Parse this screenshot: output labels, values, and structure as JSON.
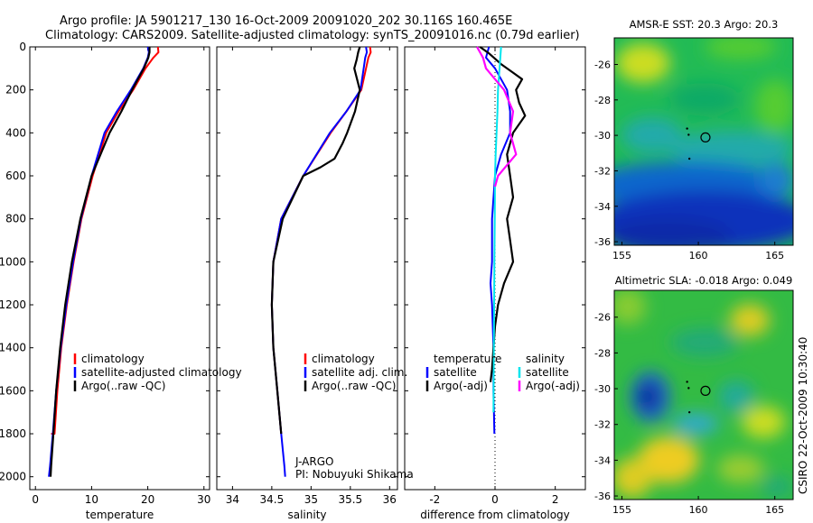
{
  "header": {
    "line1": "Argo profile: JA 5901217_130 16-Oct-2009 20091020_202 30.116S 160.465E",
    "line2": "Climatology: CARS2009. Satellite-adjusted climatology: synTS_20091016.nc (0.79d earlier)"
  },
  "colors": {
    "climatology": "#ff0000",
    "satellite": "#0000ff",
    "argo": "#000000",
    "sat_salinity": "#00e5ee",
    "argo_salinity": "#ff00ff"
  },
  "chart_data": [
    {
      "type": "line",
      "name": "temperature-profile",
      "xlabel": "temperature",
      "ylabel": "",
      "xlim": [
        -1,
        31
      ],
      "ylim": [
        2060,
        0
      ],
      "y_inverted": true,
      "xticks": [
        "0",
        "10",
        "20",
        "30"
      ],
      "yticks": [
        "0",
        "200",
        "400",
        "600",
        "800",
        "1000",
        "1200",
        "1400",
        "1600",
        "1800",
        "2000"
      ],
      "legend": [
        "climatology",
        "satellite-adjusted climatology",
        "Argo(..raw -QC)"
      ],
      "series": [
        {
          "name": "climatology",
          "color": "#ff0000",
          "x": [
            21.8,
            21.9,
            21.0,
            19.6,
            17.4,
            14.8,
            12.6,
            10.2,
            8.2,
            6.8,
            5.6,
            4.6,
            3.9,
            3.4,
            3.0,
            2.8
          ],
          "y": [
            0,
            25,
            50,
            100,
            200,
            300,
            400,
            600,
            800,
            1000,
            1200,
            1400,
            1600,
            1800,
            1800,
            1800
          ]
        },
        {
          "name": "satellite-adjusted climatology",
          "color": "#0000ff",
          "x": [
            20.0,
            20.2,
            20.0,
            19.2,
            17.0,
            14.5,
            12.3,
            10.0,
            8.1,
            6.7,
            5.5,
            4.5,
            3.7,
            3.1,
            2.6,
            2.4
          ],
          "y": [
            0,
            25,
            50,
            100,
            200,
            300,
            400,
            600,
            800,
            1000,
            1200,
            1400,
            1600,
            1800,
            1950,
            2000
          ]
        },
        {
          "name": "Argo(..raw -QC)",
          "color": "#000000",
          "x": [
            20.3,
            20.3,
            20.1,
            19.3,
            17.2,
            15.3,
            13.2,
            10.0,
            8.0,
            6.5,
            5.3,
            4.4,
            3.7,
            3.2,
            2.8,
            2.7
          ],
          "y": [
            0,
            25,
            50,
            100,
            200,
            300,
            400,
            600,
            800,
            1000,
            1200,
            1400,
            1600,
            1800,
            1950,
            2000
          ]
        }
      ]
    },
    {
      "type": "line",
      "name": "salinity-profile",
      "xlabel": "salinity",
      "xlim": [
        33.8,
        36.1
      ],
      "ylim": [
        2060,
        0
      ],
      "y_inverted": true,
      "xticks": [
        "34",
        "34.5",
        "35",
        "35.5",
        "36"
      ],
      "legend": [
        "climatology",
        "satellite adj. clim.",
        "Argo(..raw -QC)"
      ],
      "annotation": [
        "J-ARGO",
        "PI: Nobuyuki Shikama"
      ],
      "series": [
        {
          "name": "climatology",
          "color": "#ff0000",
          "x": [
            35.75,
            35.76,
            35.73,
            35.7,
            35.64,
            35.45,
            35.25,
            34.9,
            34.62,
            34.52,
            34.5,
            34.52,
            34.57,
            34.62
          ],
          "y": [
            0,
            25,
            50,
            100,
            200,
            300,
            400,
            600,
            800,
            1000,
            1200,
            1400,
            1600,
            1800
          ]
        },
        {
          "name": "satellite adj. clim.",
          "color": "#0000ff",
          "x": [
            35.7,
            35.71,
            35.69,
            35.67,
            35.63,
            35.45,
            35.24,
            34.9,
            34.62,
            34.52,
            34.5,
            34.52,
            34.57,
            34.62,
            34.66,
            34.67
          ],
          "y": [
            0,
            25,
            50,
            100,
            200,
            300,
            400,
            600,
            800,
            1000,
            1200,
            1400,
            1600,
            1800,
            1950,
            2000
          ]
        },
        {
          "name": "Argo(..raw -QC)",
          "color": "#000000",
          "x": [
            35.62,
            35.6,
            35.58,
            35.55,
            35.62,
            35.56,
            35.46,
            35.4,
            35.3,
            35.12,
            34.9,
            34.64,
            34.52,
            34.5,
            34.52,
            34.57,
            34.62
          ],
          "y": [
            0,
            25,
            60,
            100,
            200,
            300,
            400,
            450,
            520,
            560,
            600,
            800,
            1000,
            1200,
            1400,
            1600,
            1800
          ]
        }
      ]
    },
    {
      "type": "line",
      "name": "difference-profile",
      "xlabel": "difference from climatology",
      "xlim": [
        -3,
        3
      ],
      "ylim": [
        2060,
        0
      ],
      "y_inverted": true,
      "xticks": [
        "-2",
        "0",
        "2"
      ],
      "legend_left": {
        "title": "temperature",
        "items": [
          "satellite",
          "Argo(-adj)"
        ]
      },
      "legend_right": {
        "title": "salinity",
        "items": [
          "satellite",
          "Argo(-adj)"
        ]
      },
      "series": [
        {
          "name": "temperature satellite",
          "color": "#0000ff",
          "x": [
            -0.2,
            -0.3,
            0.0,
            0.2,
            0.4,
            0.5,
            0.5,
            0.2,
            0.0,
            -0.1,
            -0.1,
            -0.15,
            -0.1,
            -0.05,
            -0.05,
            -0.02
          ],
          "y": [
            0,
            50,
            100,
            150,
            200,
            300,
            400,
            500,
            600,
            800,
            1000,
            1100,
            1200,
            1400,
            1600,
            1800
          ]
        },
        {
          "name": "temperature Argo(-adj)",
          "color": "#000000",
          "x": [
            -0.5,
            -0.2,
            0.2,
            0.6,
            0.9,
            0.7,
            0.8,
            1.0,
            0.6,
            0.4,
            0.5,
            0.6,
            0.4,
            0.5,
            0.6,
            0.3,
            0.1,
            0.0,
            -0.05,
            -0.1,
            -0.15
          ],
          "y": [
            0,
            30,
            80,
            120,
            150,
            200,
            260,
            320,
            400,
            500,
            600,
            700,
            800,
            900,
            1000,
            1100,
            1200,
            1300,
            1400,
            1500,
            1560
          ]
        },
        {
          "name": "salinity satellite",
          "color": "#00e5ee",
          "x": [
            0.2,
            0.15,
            0.1,
            0.08,
            0.05,
            0.02,
            0.0,
            -0.01,
            -0.02,
            -0.03,
            -0.04,
            -0.05
          ],
          "y": [
            0,
            100,
            200,
            300,
            400,
            500,
            600,
            800,
            1000,
            1200,
            1400,
            1700
          ]
        },
        {
          "name": "salinity Argo(-adj)",
          "color": "#ff00ff",
          "x": [
            -0.6,
            -0.4,
            -0.3,
            0.0,
            0.3,
            0.6,
            0.5,
            0.7,
            0.4,
            0.1,
            0.0
          ],
          "y": [
            0,
            50,
            100,
            150,
            200,
            300,
            400,
            500,
            550,
            600,
            650
          ]
        }
      ]
    },
    {
      "type": "heatmap",
      "name": "sst-map",
      "title": "AMSR-E SST: 20.3 Argo: 20.3",
      "xlim": [
        154.5,
        166.2
      ],
      "ylim": [
        -36.2,
        -24.5
      ],
      "xticks": [
        "155",
        "160",
        "165"
      ],
      "yticks": [
        "-26",
        "-28",
        "-30",
        "-32",
        "-34",
        "-36"
      ],
      "float_position": {
        "lon": 160.465,
        "lat": -30.116
      }
    },
    {
      "type": "heatmap",
      "name": "sla-map",
      "title": "Altimetric SLA: -0.018 Argo: 0.049",
      "xlim": [
        154.5,
        166.2
      ],
      "ylim": [
        -36.2,
        -24.5
      ],
      "xticks": [
        "155",
        "160",
        "165"
      ],
      "yticks": [
        "-26",
        "-28",
        "-30",
        "-32",
        "-34",
        "-36"
      ],
      "float_position": {
        "lon": 160.465,
        "lat": -30.116
      }
    }
  ],
  "footer": {
    "credit": "CSIRO 22-Oct-2009 10:30:40"
  }
}
